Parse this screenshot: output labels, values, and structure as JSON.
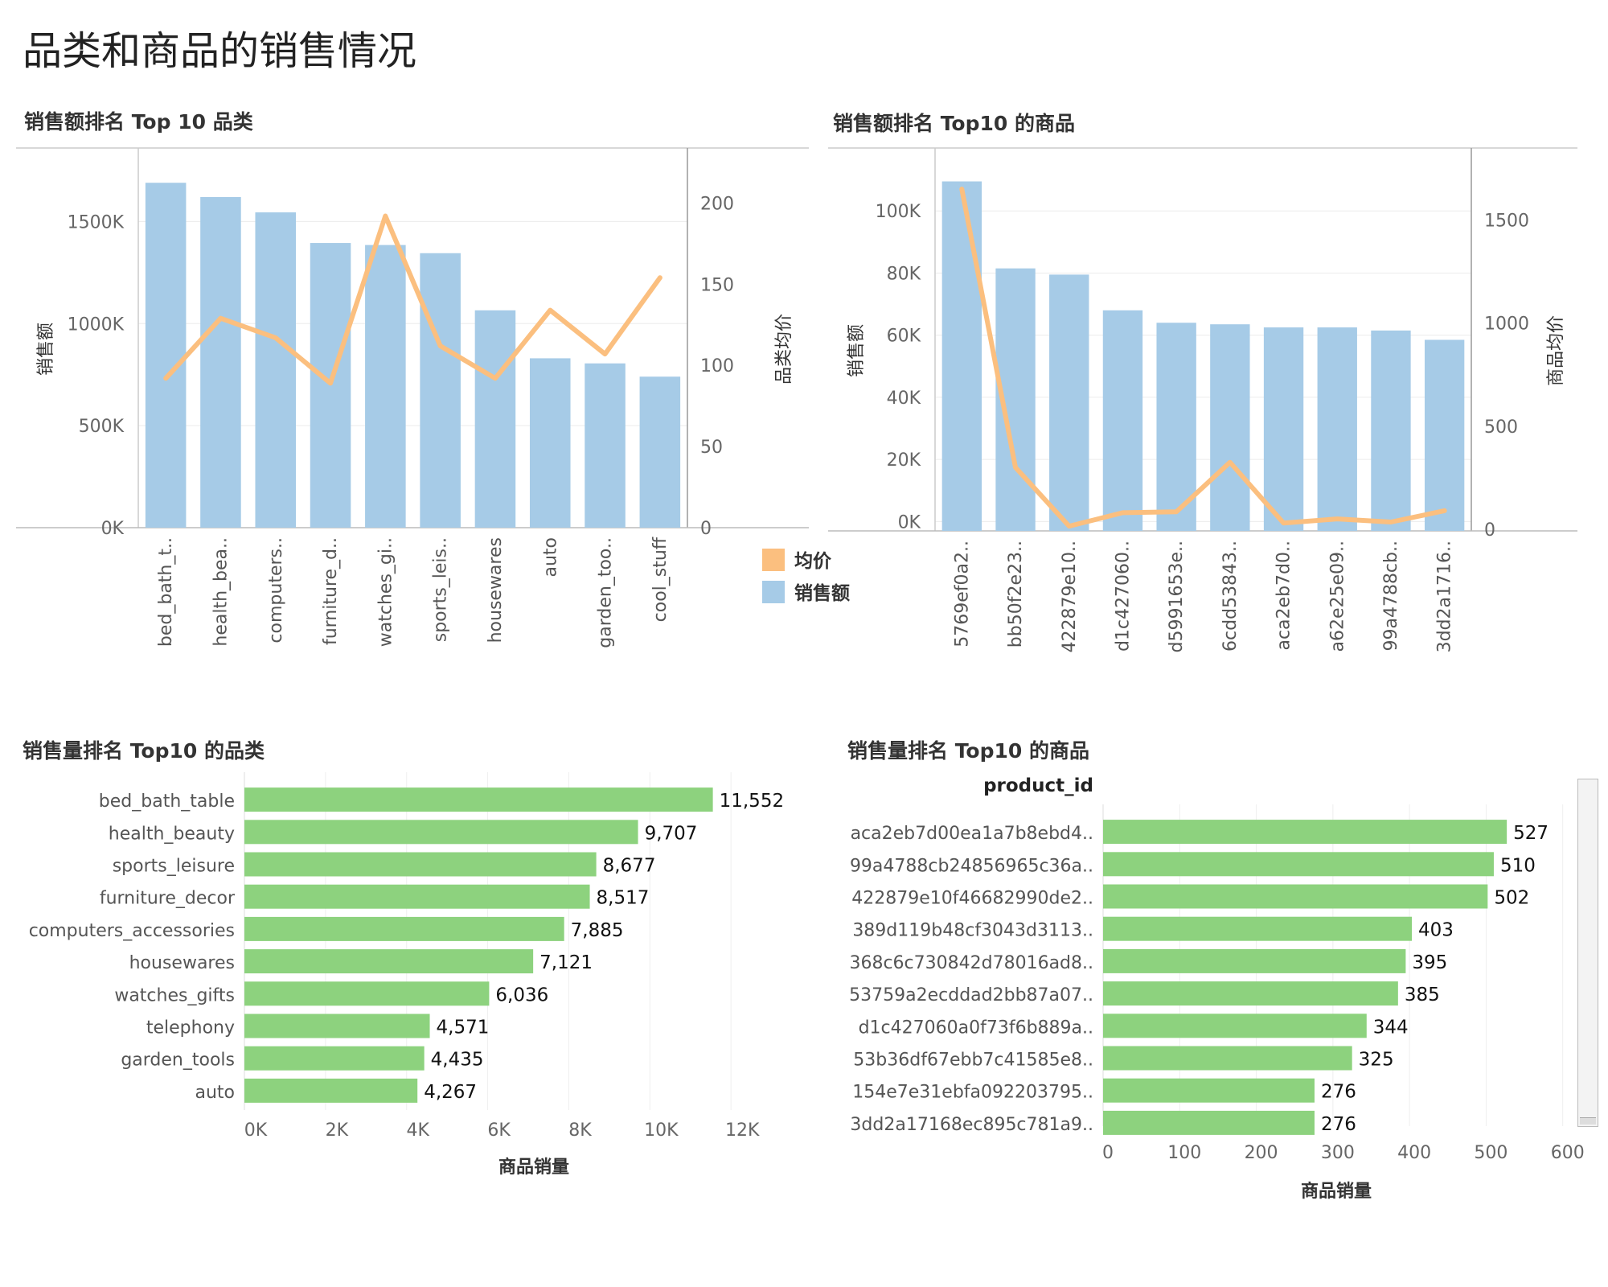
{
  "page": {
    "title": "品类和商品的销售情况"
  },
  "colors": {
    "bar_blue": "#a6cbe7",
    "line_orange": "#fbbf7f",
    "bar_green": "#8dd27e"
  },
  "chart_data": [
    {
      "id": "c1",
      "type": "bar",
      "title": "销售额排名 Top 10 品类",
      "categories": [
        "bed_bath_t..",
        "health_bea..",
        "computers..",
        "furniture_d..",
        "watches_gi..",
        "sports_leis..",
        "housewares",
        "auto",
        "garden_too..",
        "cool_stuff"
      ],
      "series": [
        {
          "name": "销售额",
          "type": "bar",
          "axis": "left",
          "values": [
            1690000,
            1620000,
            1545000,
            1395000,
            1385000,
            1345000,
            1065000,
            830000,
            805000,
            740000
          ]
        },
        {
          "name": "均价",
          "type": "line",
          "axis": "right",
          "values": [
            92,
            129,
            117,
            89,
            192,
            112,
            92,
            134,
            107,
            154
          ]
        }
      ],
      "ylabel": "销售额",
      "ylim": [
        0,
        1750000
      ],
      "yticks": [
        "0K",
        "500K",
        "1000K",
        "1500K"
      ],
      "y2label": "品类均价",
      "y2lim": [
        0,
        220
      ],
      "y2ticks": [
        "0",
        "50",
        "100",
        "150",
        "200"
      ],
      "legend": {
        "position": "right",
        "entries": [
          "均价",
          "销售额"
        ]
      }
    },
    {
      "id": "c2",
      "type": "bar",
      "title": "销售额排名 Top10 的商品",
      "categories": [
        "5769ef0a2..",
        "bb50f2e23..",
        "422879e10..",
        "d1c427060..",
        "d5991653e..",
        "6cdd53843..",
        "aca2eb7d0..",
        "a62e25e09..",
        "99a4788cb..",
        "3dd2a1716.."
      ],
      "series": [
        {
          "name": "销售额",
          "type": "bar",
          "axis": "left",
          "values": [
            109500,
            81500,
            79500,
            68000,
            64000,
            63500,
            62500,
            62500,
            61500,
            58500
          ]
        },
        {
          "name": "均价",
          "type": "line",
          "axis": "right",
          "values": [
            1650,
            300,
            15,
            80,
            85,
            325,
            30,
            50,
            35,
            90
          ]
        }
      ],
      "ylabel": "销售额",
      "ylim": [
        -3000,
        113000
      ],
      "yticks": [
        "0K",
        "20K",
        "40K",
        "60K",
        "80K",
        "100K"
      ],
      "y2label": "商品均价",
      "y2lim": [
        -8,
        1740
      ],
      "y2ticks": [
        "0",
        "500",
        "1000",
        "1500"
      ]
    },
    {
      "id": "c3",
      "type": "bar",
      "orientation": "horizontal",
      "title": "销售量排名 Top10 的品类",
      "categories": [
        "bed_bath_table",
        "health_beauty",
        "sports_leisure",
        "furniture_decor",
        "computers_accessories",
        "housewares",
        "watches_gifts",
        "telephony",
        "garden_tools",
        "auto"
      ],
      "values": [
        11552,
        9707,
        8677,
        8517,
        7885,
        7121,
        6036,
        4571,
        4435,
        4267
      ],
      "labels": [
        "11,552",
        "9,707",
        "8,677",
        "8,517",
        "7,885",
        "7,121",
        "6,036",
        "4,571",
        "4,435",
        "4,267"
      ],
      "xlabel": "商品销量",
      "xlim": [
        0,
        13800
      ],
      "xticks": [
        "0K",
        "2K",
        "4K",
        "6K",
        "8K",
        "10K",
        "12K"
      ]
    },
    {
      "id": "c4",
      "type": "bar",
      "orientation": "horizontal",
      "title": "销售量排名 Top10 的商品",
      "row_header": "product_id",
      "categories": [
        "aca2eb7d00ea1a7b8ebd4..",
        "99a4788cb24856965c36a..",
        "422879e10f46682990de2..",
        "389d119b48cf3043d3113..",
        "368c6c730842d78016ad8..",
        "53759a2ecddad2bb87a07..",
        "d1c427060a0f73f6b889a..",
        "53b36df67ebb7c41585e8..",
        "154e7e31ebfa092203795..",
        "3dd2a17168ec895c781a9.."
      ],
      "values": [
        527,
        510,
        502,
        403,
        395,
        385,
        344,
        325,
        276,
        276
      ],
      "labels": [
        "527",
        "510",
        "502",
        "403",
        "395",
        "385",
        "344",
        "325",
        "276",
        "276"
      ],
      "xlabel": "商品销量",
      "xlim": [
        0,
        615
      ],
      "xticks": [
        "0",
        "100",
        "200",
        "300",
        "400",
        "500",
        "600"
      ]
    }
  ]
}
